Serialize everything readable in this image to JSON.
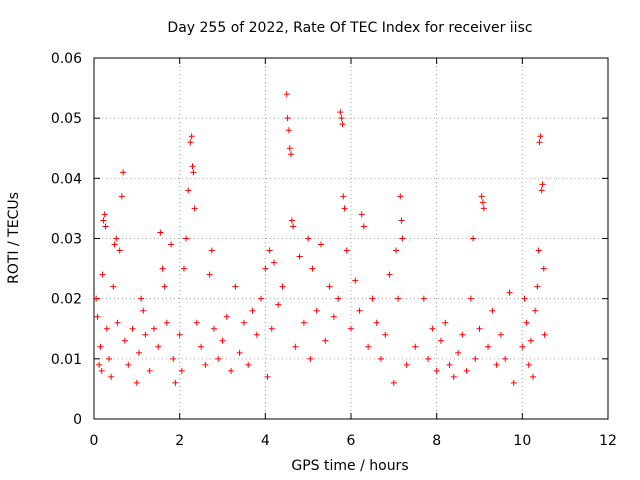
{
  "chart_data": {
    "type": "scatter",
    "title": "Day 255 of 2022, Rate Of TEC Index for receiver iisc",
    "xlabel": "GPS time / hours",
    "ylabel": "ROTI / TECUs",
    "xlim": [
      0,
      12
    ],
    "ylim": [
      0,
      0.06
    ],
    "xticks": [
      "0",
      "2",
      "4",
      "6",
      "8",
      "10",
      "12"
    ],
    "yticks": [
      "0",
      "0.01",
      "0.02",
      "0.03",
      "0.04",
      "0.05",
      "0.06"
    ],
    "grid": true,
    "marker": "+",
    "marker_color": "#ff0000",
    "series": [
      {
        "points": [
          [
            0.05,
            0.02
          ],
          [
            0.08,
            0.017
          ],
          [
            0.12,
            0.009
          ],
          [
            0.15,
            0.012
          ],
          [
            0.18,
            0.008
          ],
          [
            0.22,
            0.033
          ],
          [
            0.25,
            0.034
          ],
          [
            0.27,
            0.032
          ],
          [
            0.2,
            0.024
          ],
          [
            0.3,
            0.015
          ],
          [
            0.35,
            0.01
          ],
          [
            0.4,
            0.007
          ],
          [
            0.45,
            0.022
          ],
          [
            0.48,
            0.029
          ],
          [
            0.52,
            0.03
          ],
          [
            0.55,
            0.016
          ],
          [
            0.6,
            0.028
          ],
          [
            0.65,
            0.037
          ],
          [
            0.68,
            0.041
          ],
          [
            0.72,
            0.013
          ],
          [
            0.8,
            0.009
          ],
          [
            0.9,
            0.015
          ],
          [
            1.0,
            0.006
          ],
          [
            1.05,
            0.011
          ],
          [
            1.1,
            0.02
          ],
          [
            1.15,
            0.018
          ],
          [
            1.2,
            0.014
          ],
          [
            1.3,
            0.008
          ],
          [
            1.4,
            0.015
          ],
          [
            1.5,
            0.012
          ],
          [
            1.55,
            0.031
          ],
          [
            1.6,
            0.025
          ],
          [
            1.65,
            0.022
          ],
          [
            1.7,
            0.016
          ],
          [
            1.8,
            0.029
          ],
          [
            1.85,
            0.01
          ],
          [
            1.9,
            0.006
          ],
          [
            2.0,
            0.014
          ],
          [
            2.05,
            0.008
          ],
          [
            2.1,
            0.025
          ],
          [
            2.15,
            0.03
          ],
          [
            2.2,
            0.038
          ],
          [
            2.25,
            0.046
          ],
          [
            2.28,
            0.047
          ],
          [
            2.3,
            0.042
          ],
          [
            2.32,
            0.041
          ],
          [
            2.35,
            0.035
          ],
          [
            2.4,
            0.016
          ],
          [
            2.5,
            0.012
          ],
          [
            2.6,
            0.009
          ],
          [
            2.7,
            0.024
          ],
          [
            2.75,
            0.028
          ],
          [
            2.8,
            0.015
          ],
          [
            2.9,
            0.01
          ],
          [
            3.0,
            0.013
          ],
          [
            3.1,
            0.017
          ],
          [
            3.2,
            0.008
          ],
          [
            3.3,
            0.022
          ],
          [
            3.4,
            0.011
          ],
          [
            3.5,
            0.016
          ],
          [
            3.6,
            0.009
          ],
          [
            3.7,
            0.018
          ],
          [
            3.8,
            0.014
          ],
          [
            3.9,
            0.02
          ],
          [
            4.0,
            0.025
          ],
          [
            4.05,
            0.007
          ],
          [
            4.1,
            0.028
          ],
          [
            4.15,
            0.015
          ],
          [
            4.2,
            0.026
          ],
          [
            4.3,
            0.019
          ],
          [
            4.4,
            0.022
          ],
          [
            4.5,
            0.054
          ],
          [
            4.52,
            0.05
          ],
          [
            4.55,
            0.048
          ],
          [
            4.57,
            0.045
          ],
          [
            4.6,
            0.044
          ],
          [
            4.62,
            0.033
          ],
          [
            4.65,
            0.032
          ],
          [
            4.7,
            0.012
          ],
          [
            4.8,
            0.027
          ],
          [
            4.9,
            0.016
          ],
          [
            5.0,
            0.03
          ],
          [
            5.05,
            0.01
          ],
          [
            5.1,
            0.025
          ],
          [
            5.2,
            0.018
          ],
          [
            5.3,
            0.029
          ],
          [
            5.4,
            0.013
          ],
          [
            5.5,
            0.022
          ],
          [
            5.6,
            0.017
          ],
          [
            5.7,
            0.02
          ],
          [
            5.75,
            0.051
          ],
          [
            5.78,
            0.05
          ],
          [
            5.8,
            0.049
          ],
          [
            5.82,
            0.037
          ],
          [
            5.85,
            0.035
          ],
          [
            5.9,
            0.028
          ],
          [
            6.0,
            0.015
          ],
          [
            6.1,
            0.023
          ],
          [
            6.2,
            0.018
          ],
          [
            6.25,
            0.034
          ],
          [
            6.3,
            0.032
          ],
          [
            6.4,
            0.012
          ],
          [
            6.5,
            0.02
          ],
          [
            6.6,
            0.016
          ],
          [
            6.7,
            0.01
          ],
          [
            6.8,
            0.014
          ],
          [
            6.9,
            0.024
          ],
          [
            7.0,
            0.006
          ],
          [
            7.05,
            0.028
          ],
          [
            7.1,
            0.02
          ],
          [
            7.15,
            0.037
          ],
          [
            7.18,
            0.033
          ],
          [
            7.2,
            0.03
          ],
          [
            7.3,
            0.009
          ],
          [
            7.5,
            0.012
          ],
          [
            7.7,
            0.02
          ],
          [
            7.8,
            0.01
          ],
          [
            7.9,
            0.015
          ],
          [
            8.0,
            0.008
          ],
          [
            8.1,
            0.013
          ],
          [
            8.2,
            0.016
          ],
          [
            8.3,
            0.009
          ],
          [
            8.4,
            0.007
          ],
          [
            8.5,
            0.011
          ],
          [
            8.6,
            0.014
          ],
          [
            8.7,
            0.008
          ],
          [
            8.8,
            0.02
          ],
          [
            8.85,
            0.03
          ],
          [
            8.9,
            0.01
          ],
          [
            9.0,
            0.015
          ],
          [
            9.05,
            0.037
          ],
          [
            9.08,
            0.036
          ],
          [
            9.1,
            0.035
          ],
          [
            9.2,
            0.012
          ],
          [
            9.3,
            0.018
          ],
          [
            9.4,
            0.009
          ],
          [
            9.5,
            0.014
          ],
          [
            9.6,
            0.01
          ],
          [
            9.7,
            0.021
          ],
          [
            9.8,
            0.006
          ],
          [
            10.0,
            0.012
          ],
          [
            10.05,
            0.02
          ],
          [
            10.1,
            0.016
          ],
          [
            10.15,
            0.009
          ],
          [
            10.2,
            0.013
          ],
          [
            10.25,
            0.007
          ],
          [
            10.3,
            0.018
          ],
          [
            10.35,
            0.022
          ],
          [
            10.38,
            0.028
          ],
          [
            10.4,
            0.046
          ],
          [
            10.42,
            0.047
          ],
          [
            10.45,
            0.038
          ],
          [
            10.47,
            0.039
          ],
          [
            10.5,
            0.025
          ],
          [
            10.52,
            0.014
          ]
        ]
      }
    ]
  }
}
